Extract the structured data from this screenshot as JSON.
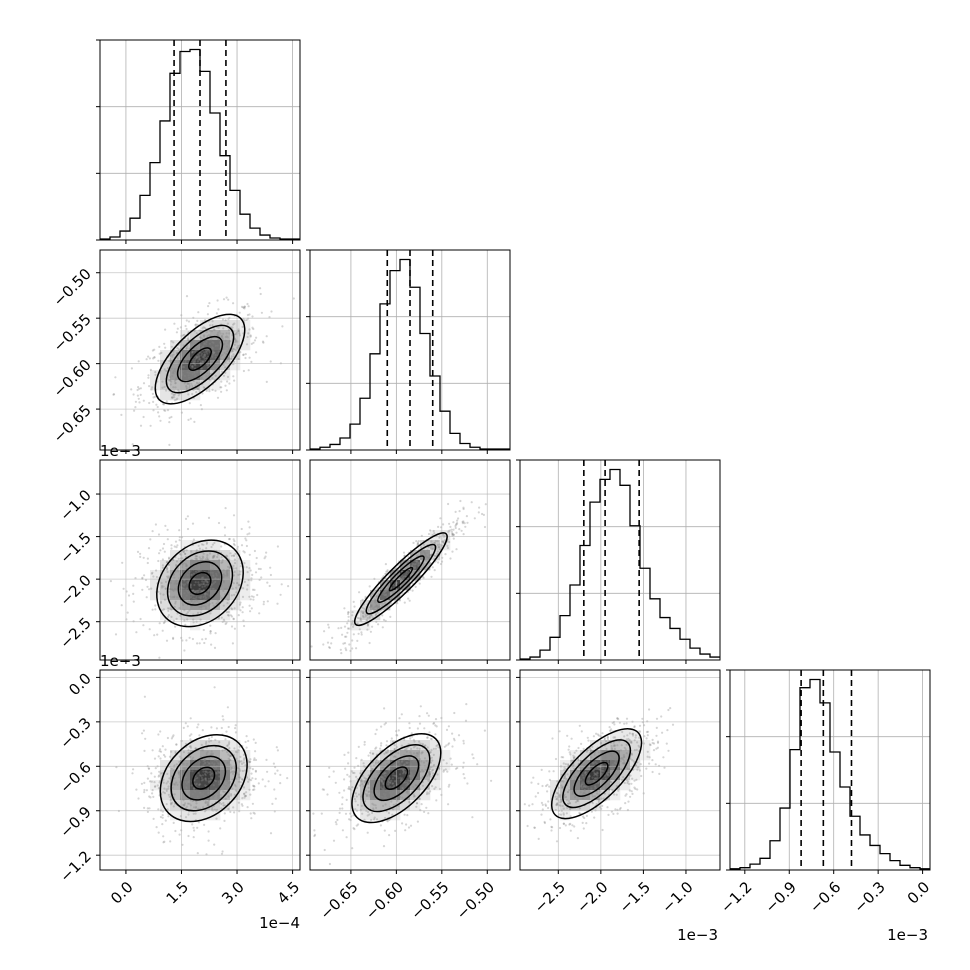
{
  "chart_data": {
    "type": "corner",
    "panels": [
      {
        "id": "hist-0",
        "kind": "histogram",
        "x_range": [
          -0.7,
          4.7
        ],
        "bin_width": 0.27,
        "counts": [
          1,
          3,
          9,
          22,
          45,
          78,
          120,
          168,
          190,
          192,
          170,
          128,
          85,
          50,
          26,
          12,
          5,
          2,
          1,
          1
        ],
        "quantiles": [
          1.3,
          2.0,
          2.7
        ]
      },
      {
        "id": "hist-1",
        "kind": "histogram",
        "x_range": [
          -0.695,
          -0.475
        ],
        "bin_width": 0.011,
        "counts": [
          1,
          3,
          6,
          13,
          28,
          56,
          104,
          158,
          194,
          206,
          176,
          126,
          80,
          42,
          18,
          7,
          3,
          1,
          1,
          1
        ],
        "quantiles": [
          -0.61,
          -0.585,
          -0.56
        ]
      },
      {
        "id": "hist-2",
        "kind": "histogram",
        "x_range": [
          -2.95,
          -0.6
        ],
        "bin_width": 0.1175,
        "counts": [
          1,
          3,
          10,
          23,
          45,
          76,
          116,
          160,
          183,
          193,
          177,
          136,
          93,
          62,
          43,
          32,
          21,
          12,
          6,
          3
        ],
        "quantiles": [
          -2.2,
          -1.95,
          -1.55
        ]
      },
      {
        "id": "hist-3",
        "kind": "histogram",
        "x_range": [
          -1.3,
          0.05
        ],
        "bin_width": 0.0675,
        "counts": [
          1,
          2,
          5,
          10,
          25,
          53,
          103,
          156,
          163,
          143,
          101,
          71,
          46,
          30,
          21,
          14,
          8,
          4,
          2,
          1
        ],
        "quantiles": [
          -0.82,
          -0.67,
          -0.48
        ]
      },
      {
        "id": "kde-1-0",
        "kind": "density",
        "x_range": [
          -0.7,
          4.7
        ],
        "y_range": [
          -0.695,
          -0.475
        ],
        "peak": [
          2.0,
          -0.595
        ]
      },
      {
        "id": "kde-2-0",
        "kind": "density",
        "x_range": [
          -0.7,
          4.7
        ],
        "y_range": [
          -2.95,
          -0.6
        ],
        "peak": [
          2.0,
          -2.05
        ]
      },
      {
        "id": "kde-2-1",
        "kind": "density",
        "x_range": [
          -0.695,
          -0.475
        ],
        "y_range": [
          -2.95,
          -0.6
        ],
        "peak": [
          -0.595,
          -2.0
        ]
      },
      {
        "id": "kde-3-0",
        "kind": "density",
        "x_range": [
          -0.7,
          4.7
        ],
        "y_range": [
          -1.3,
          0.05
        ],
        "peak": [
          2.1,
          -0.68
        ]
      },
      {
        "id": "kde-3-1",
        "kind": "density",
        "x_range": [
          -0.695,
          -0.475
        ],
        "y_range": [
          -1.3,
          0.05
        ],
        "peak": [
          -0.6,
          -0.68
        ]
      },
      {
        "id": "kde-3-2",
        "kind": "density",
        "x_range": [
          -2.95,
          -0.6
        ],
        "y_range": [
          -1.3,
          0.05
        ],
        "peak": [
          -2.05,
          -0.65
        ]
      }
    ],
    "axes": {
      "x0": {
        "ticks": [
          0.0,
          1.5,
          3.0,
          4.5
        ],
        "labels": [
          "0.0",
          "1.5",
          "3.0",
          "4.5"
        ],
        "offset": "1e−4"
      },
      "x1": {
        "ticks": [
          -0.65,
          -0.6,
          -0.55,
          -0.5
        ],
        "labels": [
          "−0.65",
          "−0.60",
          "−0.55",
          "−0.50"
        ]
      },
      "x2": {
        "ticks": [
          -2.5,
          -2.0,
          -1.5,
          -1.0
        ],
        "labels": [
          "−2.5",
          "−2.0",
          "−1.5",
          "−1.0"
        ],
        "offset": "1e−3"
      },
      "x3": {
        "ticks": [
          -1.2,
          -0.9,
          -0.6,
          -0.3,
          0.0
        ],
        "labels": [
          "−1.2",
          "−0.9",
          "−0.6",
          "−0.3",
          "0.0"
        ],
        "offset": "1e−3"
      },
      "y1": {
        "ticks": [
          -0.5,
          -0.55,
          -0.6,
          -0.65
        ],
        "labels": [
          "−0.50",
          "−0.55",
          "−0.60",
          "−0.65"
        ]
      },
      "y2": {
        "ticks": [
          -1.0,
          -1.5,
          -2.0,
          -2.5
        ],
        "labels": [
          "−1.0",
          "−1.5",
          "−2.0",
          "−2.5"
        ],
        "offset": "1e−3"
      },
      "y3": {
        "ticks": [
          0.0,
          -0.3,
          -0.6,
          -0.9,
          -1.2
        ],
        "labels": [
          "0.0",
          "−0.3",
          "−0.6",
          "−0.9",
          "−1.2"
        ],
        "offset": "1e−3"
      }
    },
    "grid": true,
    "title": "",
    "legend": "none"
  }
}
